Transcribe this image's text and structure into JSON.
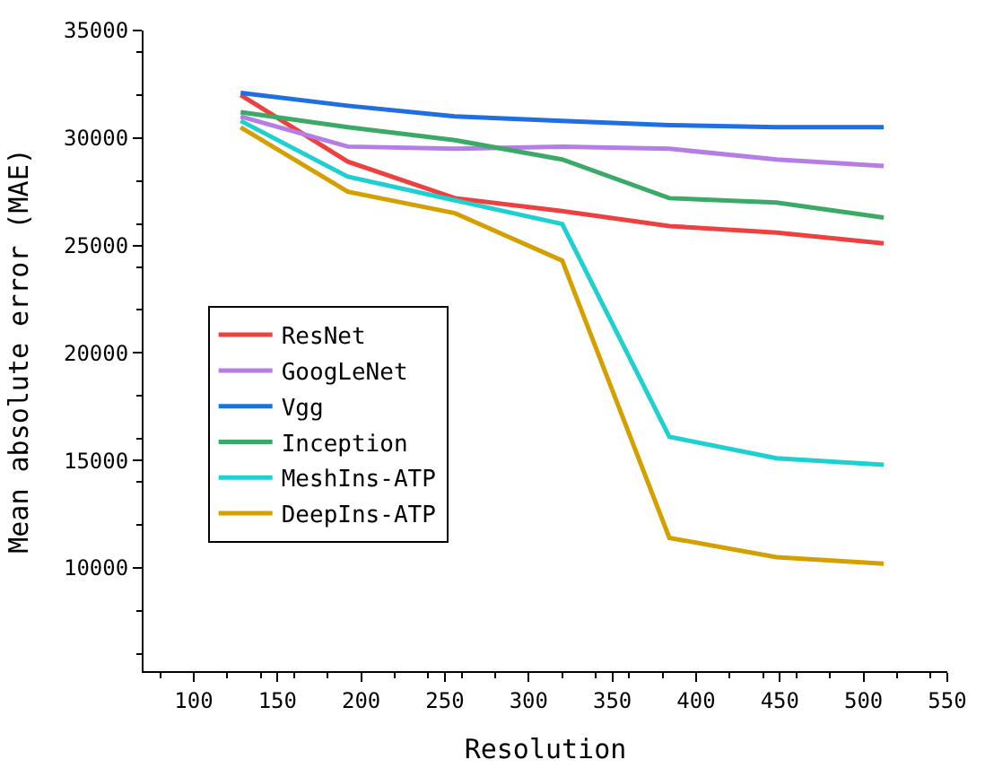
{
  "chart_data": {
    "type": "line",
    "xlabel": "Resolution",
    "ylabel": "Mean absolute error (MAE)",
    "x": [
      128,
      192,
      256,
      320,
      384,
      448,
      512
    ],
    "xlim": [
      70,
      550
    ],
    "xticks": [
      100,
      150,
      200,
      250,
      300,
      350,
      400,
      450,
      500,
      550
    ],
    "ylim": [
      5200,
      35000
    ],
    "yticks": [
      10000,
      15000,
      20000,
      25000,
      30000,
      35000
    ],
    "legend": "bottom left",
    "marker": "none",
    "line_style": "solid",
    "series": [
      {
        "name": "ResNet",
        "color": "#ef4040",
        "values": [
          32000,
          28900,
          27200,
          26600,
          25900,
          25600,
          25100
        ]
      },
      {
        "name": "GoogLeNet",
        "color": "#b47ee6",
        "values": [
          31000,
          29600,
          29500,
          29600,
          29500,
          29000,
          28700
        ]
      },
      {
        "name": "Vgg",
        "color": "#1f6fe0",
        "values": [
          32100,
          31500,
          31000,
          30800,
          30600,
          30500,
          30500
        ]
      },
      {
        "name": "Inception",
        "color": "#3aaa66",
        "values": [
          31200,
          30500,
          29900,
          29000,
          27200,
          27000,
          26300
        ]
      },
      {
        "name": "MeshIns-ATP",
        "color": "#1ed0d0",
        "values": [
          30800,
          28200,
          27100,
          26000,
          16100,
          15100,
          14800
        ]
      },
      {
        "name": "DeepIns-ATP",
        "color": "#d4a000",
        "values": [
          30500,
          27500,
          26500,
          24300,
          11400,
          10500,
          10200
        ]
      }
    ]
  }
}
